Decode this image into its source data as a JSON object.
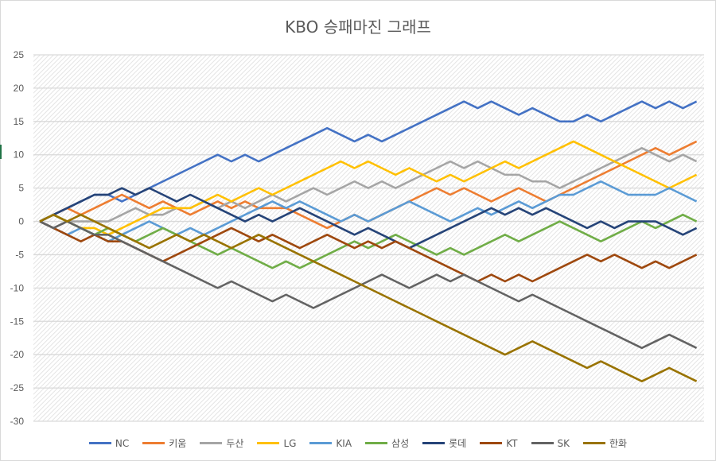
{
  "chart_data": {
    "type": "line",
    "title": "KBO 승패마진 그래프",
    "xlabel": "",
    "ylabel": "",
    "ylim": [
      -30,
      25
    ],
    "yticks": [
      25,
      20,
      15,
      10,
      5,
      0,
      -5,
      -10,
      -15,
      -20,
      -25,
      -30
    ],
    "grid": true,
    "legend": "bottom",
    "x": [
      0,
      1,
      2,
      3,
      4,
      5,
      6,
      7,
      8,
      9,
      10,
      11,
      12,
      13,
      14,
      15,
      16,
      17,
      18,
      19,
      20,
      21,
      22,
      23,
      24,
      25,
      26,
      27,
      28,
      29,
      30,
      31,
      32,
      33,
      34,
      35,
      36,
      37,
      38,
      39,
      40,
      41,
      42,
      43,
      44,
      45,
      46,
      47,
      48
    ],
    "series": [
      {
        "name": "NC",
        "color": "#4472C4",
        "values": [
          0,
          1,
          2,
          3,
          4,
          4,
          3,
          4,
          5,
          6,
          7,
          8,
          9,
          10,
          9,
          10,
          9,
          10,
          11,
          12,
          13,
          14,
          13,
          12,
          13,
          12,
          13,
          14,
          15,
          16,
          17,
          18,
          17,
          18,
          17,
          16,
          17,
          16,
          15,
          15,
          16,
          15,
          16,
          17,
          18,
          17,
          18,
          17,
          18
        ]
      },
      {
        "name": "키움",
        "color": "#ED7D31",
        "values": [
          0,
          1,
          2,
          1,
          2,
          3,
          4,
          3,
          2,
          3,
          2,
          1,
          2,
          3,
          2,
          3,
          2,
          2,
          2,
          1,
          0,
          -1,
          0,
          1,
          0,
          1,
          2,
          3,
          4,
          5,
          4,
          5,
          4,
          3,
          4,
          5,
          4,
          3,
          4,
          5,
          6,
          7,
          8,
          9,
          10,
          11,
          10,
          11,
          12
        ]
      },
      {
        "name": "두산",
        "color": "#A5A5A5",
        "values": [
          0,
          -1,
          0,
          0,
          0,
          0,
          1,
          2,
          1,
          1,
          2,
          2,
          3,
          2,
          3,
          2,
          3,
          4,
          3,
          4,
          5,
          4,
          5,
          6,
          5,
          6,
          5,
          6,
          7,
          8,
          9,
          8,
          9,
          8,
          7,
          7,
          6,
          6,
          5,
          6,
          7,
          8,
          9,
          10,
          11,
          10,
          9,
          10,
          9
        ]
      },
      {
        "name": "LG",
        "color": "#FFC000",
        "values": [
          0,
          1,
          0,
          -1,
          -1,
          -2,
          -1,
          0,
          1,
          2,
          2,
          2,
          3,
          4,
          3,
          4,
          5,
          4,
          5,
          6,
          7,
          8,
          9,
          8,
          9,
          8,
          7,
          8,
          7,
          6,
          7,
          6,
          7,
          8,
          9,
          8,
          9,
          10,
          11,
          12,
          11,
          10,
          9,
          8,
          7,
          6,
          5,
          6,
          7
        ]
      },
      {
        "name": "KIA",
        "color": "#5B9BD5",
        "values": [
          0,
          -1,
          -2,
          -1,
          -2,
          -3,
          -2,
          -1,
          0,
          -1,
          -2,
          -1,
          -2,
          -1,
          0,
          1,
          2,
          3,
          2,
          3,
          2,
          1,
          0,
          1,
          0,
          1,
          2,
          3,
          2,
          1,
          0,
          1,
          2,
          1,
          2,
          3,
          2,
          3,
          4,
          4,
          5,
          6,
          5,
          4,
          4,
          4,
          5,
          4,
          3
        ]
      },
      {
        "name": "삼성",
        "color": "#70AD47",
        "values": [
          0,
          1,
          0,
          -1,
          -2,
          -1,
          -2,
          -3,
          -2,
          -1,
          -2,
          -3,
          -4,
          -5,
          -4,
          -5,
          -6,
          -7,
          -6,
          -7,
          -6,
          -5,
          -4,
          -3,
          -4,
          -3,
          -2,
          -3,
          -4,
          -5,
          -4,
          -5,
          -4,
          -3,
          -2,
          -3,
          -2,
          -1,
          0,
          -1,
          -2,
          -3,
          -2,
          -1,
          0,
          -1,
          0,
          1,
          0
        ]
      },
      {
        "name": "롯데",
        "color": "#264478",
        "values": [
          0,
          1,
          2,
          3,
          4,
          4,
          5,
          4,
          5,
          4,
          3,
          4,
          3,
          2,
          1,
          0,
          1,
          0,
          1,
          2,
          1,
          0,
          -1,
          -2,
          -1,
          -2,
          -3,
          -4,
          -3,
          -2,
          -1,
          0,
          1,
          2,
          1,
          2,
          1,
          2,
          1,
          0,
          -1,
          0,
          -1,
          0,
          0,
          0,
          -1,
          -2,
          -1
        ]
      },
      {
        "name": "KT",
        "color": "#9E480E",
        "values": [
          0,
          -1,
          -2,
          -3,
          -2,
          -3,
          -3,
          -4,
          -5,
          -6,
          -5,
          -4,
          -3,
          -2,
          -1,
          -2,
          -3,
          -2,
          -3,
          -4,
          -3,
          -2,
          -3,
          -4,
          -3,
          -4,
          -3,
          -4,
          -5,
          -6,
          -7,
          -8,
          -9,
          -8,
          -9,
          -8,
          -9,
          -8,
          -7,
          -6,
          -5,
          -6,
          -5,
          -6,
          -7,
          -6,
          -7,
          -6,
          -5
        ]
      },
      {
        "name": "SK",
        "color": "#636363",
        "values": [
          0,
          -1,
          0,
          -1,
          -2,
          -2,
          -3,
          -4,
          -5,
          -6,
          -7,
          -8,
          -9,
          -10,
          -9,
          -10,
          -11,
          -12,
          -11,
          -12,
          -13,
          -12,
          -11,
          -10,
          -9,
          -8,
          -9,
          -10,
          -9,
          -8,
          -9,
          -8,
          -9,
          -10,
          -11,
          -12,
          -11,
          -12,
          -13,
          -14,
          -15,
          -16,
          -17,
          -18,
          -19,
          -18,
          -17,
          -18,
          -19
        ]
      },
      {
        "name": "한화",
        "color": "#997300",
        "values": [
          0,
          1,
          0,
          1,
          0,
          -1,
          -2,
          -3,
          -4,
          -3,
          -2,
          -3,
          -2,
          -3,
          -4,
          -3,
          -2,
          -3,
          -4,
          -5,
          -6,
          -7,
          -8,
          -9,
          -10,
          -11,
          -12,
          -13,
          -14,
          -15,
          -16,
          -17,
          -18,
          -19,
          -20,
          -19,
          -18,
          -19,
          -20,
          -21,
          -22,
          -21,
          -22,
          -23,
          -24,
          -23,
          -22,
          -23,
          -24
        ]
      }
    ]
  }
}
